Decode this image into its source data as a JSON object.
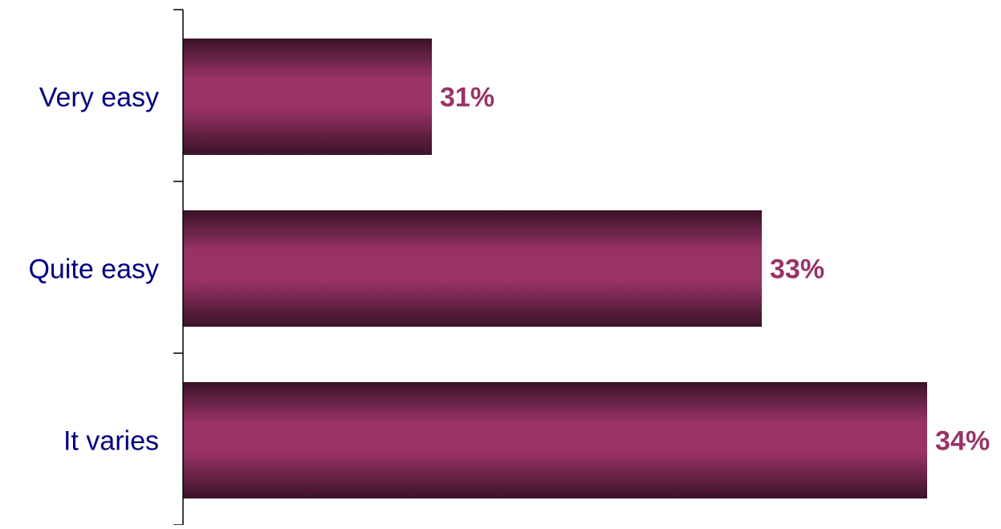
{
  "chart_data": {
    "type": "bar",
    "orientation": "horizontal",
    "categories": [
      "Very easy",
      "Quite easy",
      "It varies"
    ],
    "values": [
      31,
      33,
      34
    ],
    "value_labels": [
      "31%",
      "33%",
      "34%"
    ],
    "unit": "%",
    "title": "",
    "xlabel": "",
    "ylabel": "",
    "grid": false,
    "legend": "none",
    "colors": {
      "bar_mid": "#993366",
      "bar_edge": "#3a1328",
      "category_label": "#000080",
      "value_label": "#993366",
      "axis": "#000000"
    }
  }
}
